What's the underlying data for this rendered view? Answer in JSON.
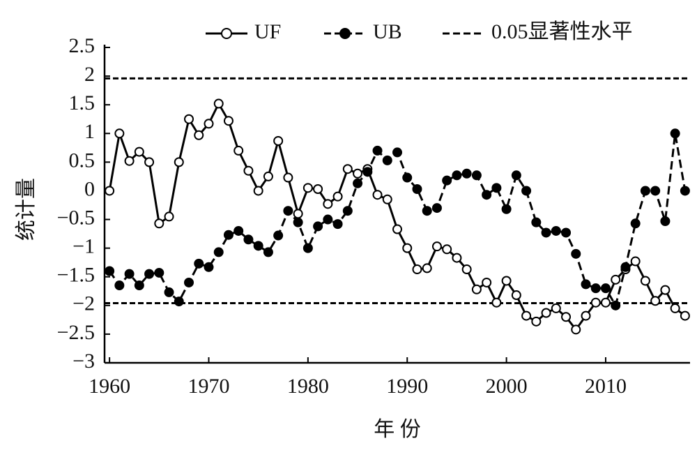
{
  "chart_data": {
    "type": "line",
    "y_label": "统计量",
    "x_label": "年 份",
    "x": [
      1960,
      1961,
      1962,
      1963,
      1964,
      1965,
      1966,
      1967,
      1968,
      1969,
      1970,
      1971,
      1972,
      1973,
      1974,
      1975,
      1976,
      1977,
      1978,
      1979,
      1980,
      1981,
      1982,
      1983,
      1984,
      1985,
      1986,
      1987,
      1988,
      1989,
      1990,
      1991,
      1992,
      1993,
      1994,
      1995,
      1996,
      1997,
      1998,
      1999,
      2000,
      2001,
      2002,
      2003,
      2004,
      2005,
      2006,
      2007,
      2008,
      2009,
      2010,
      2011,
      2012,
      2013,
      2014,
      2015,
      2016,
      2017,
      2018
    ],
    "series": [
      {
        "name": "UF",
        "color": "#000000",
        "marker": "open",
        "dash": false,
        "values": [
          0,
          1.0,
          0.52,
          0.68,
          0.5,
          -0.57,
          -0.45,
          0.5,
          1.25,
          0.97,
          1.17,
          1.52,
          1.22,
          0.7,
          0.35,
          0,
          0.25,
          0.87,
          0.23,
          -0.4,
          0.05,
          0.03,
          -0.23,
          -0.1,
          0.38,
          0.3,
          0.38,
          -0.07,
          -0.15,
          -0.67,
          -1.0,
          -1.37,
          -1.35,
          -0.97,
          -1.02,
          -1.17,
          -1.37,
          -1.72,
          -1.6,
          -1.95,
          -1.57,
          -1.82,
          -2.18,
          -2.28,
          -2.13,
          -2.05,
          -2.2,
          -2.42,
          -2.18,
          -1.95,
          -1.95,
          -1.55,
          -1.37,
          -1.23,
          -1.57,
          -1.92,
          -1.73,
          -2.05,
          -2.18
        ]
      },
      {
        "name": "UB",
        "color": "#000000",
        "marker": "filled",
        "dash": true,
        "values": [
          -1.4,
          -1.65,
          -1.45,
          -1.65,
          -1.45,
          -1.43,
          -1.77,
          -1.93,
          -1.6,
          -1.27,
          -1.33,
          -1.07,
          -0.77,
          -0.7,
          -0.85,
          -0.96,
          -1.07,
          -0.78,
          -0.35,
          -0.55,
          -1.0,
          -0.62,
          -0.5,
          -0.58,
          -0.35,
          0.13,
          0.33,
          0.7,
          0.53,
          0.67,
          0.23,
          0.03,
          -0.35,
          -0.3,
          0.18,
          0.27,
          0.3,
          0.27,
          -0.07,
          0.05,
          -0.32,
          0.27,
          0,
          -0.55,
          -0.73,
          -0.7,
          -0.73,
          -1.1,
          -1.63,
          -1.7,
          -1.7,
          -2.0,
          -1.33,
          -0.57,
          0,
          0,
          -0.53,
          1.0,
          0
        ]
      }
    ],
    "significance": {
      "name": "0.05显著性水平",
      "values": [
        1.96,
        -1.96
      ]
    },
    "xlim": [
      1959.5,
      2018.5
    ],
    "xticks": [
      1960,
      1970,
      1980,
      1990,
      2000,
      2010
    ],
    "ylim": [
      -3,
      2.5
    ],
    "yticks": [
      {
        "value": -3,
        "label": "−3"
      },
      {
        "value": -2.5,
        "label": "−2.5"
      },
      {
        "value": -2,
        "label": "−2"
      },
      {
        "value": -1.5,
        "label": "−1.5"
      },
      {
        "value": -1,
        "label": "−1"
      },
      {
        "value": -0.5,
        "label": "−0.5"
      },
      0,
      0.5,
      1,
      1.5,
      2,
      2.5
    ],
    "legend": "top"
  }
}
